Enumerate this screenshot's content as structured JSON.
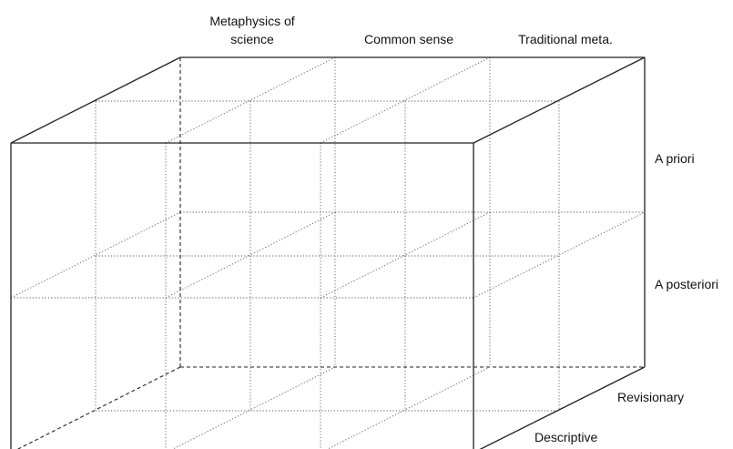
{
  "labels": {
    "column_1_line_1": "Metaphysics of",
    "column_1_line_2": "science",
    "column_2": "Common sense",
    "column_3": "Traditional meta.",
    "row_top": "A priori",
    "row_bottom": "A posteriori",
    "depth_back": "Revisionary",
    "depth_front": "Descriptive"
  }
}
